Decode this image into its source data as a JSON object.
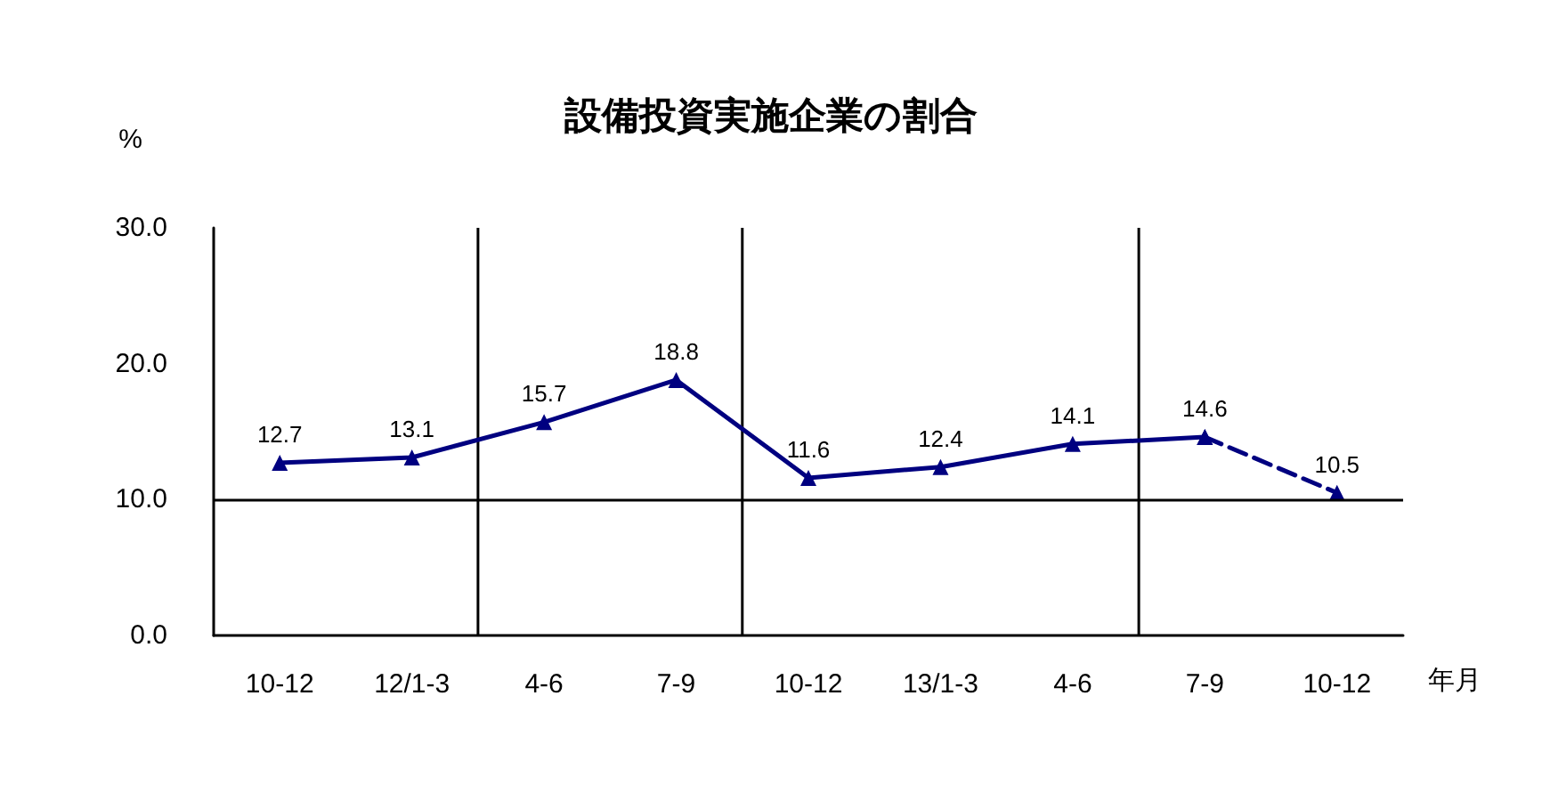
{
  "chart_data": {
    "type": "line",
    "title": "設備投資実施企業の割合",
    "xlabel": "年月",
    "ylabel": "%",
    "categories": [
      "10-12",
      "12/1-3",
      "4-6",
      "7-9",
      "10-12",
      "13/1-3",
      "4-6",
      "7-9",
      "10-12"
    ],
    "series": [
      {
        "color": "#000080",
        "line_style": "solid",
        "values": [
          12.7,
          13.1,
          15.7,
          18.8,
          11.6,
          12.4,
          14.1,
          14.6,
          null
        ],
        "value_labels": [
          "12.7",
          "13.1",
          "15.7",
          "18.8",
          "11.6",
          "12.4",
          "14.1",
          "14.6",
          null
        ]
      },
      {
        "color": "#000080",
        "line_style": "dashed",
        "values": [
          null,
          null,
          null,
          null,
          null,
          null,
          null,
          14.6,
          10.5
        ],
        "value_labels": [
          null,
          null,
          null,
          null,
          null,
          null,
          null,
          null,
          "10.5"
        ]
      }
    ],
    "ylim": [
      0,
      30
    ],
    "yticks": [
      {
        "value": 0,
        "label": "0.0"
      },
      {
        "value": 10,
        "label": "10.0"
      },
      {
        "value": 20,
        "label": "20.0"
      },
      {
        "value": 30,
        "label": "30.0"
      }
    ],
    "grid": false,
    "marker": "triangle",
    "ref_lines": [
      {
        "axis": "y",
        "value": 10,
        "color": "#000000"
      }
    ]
  }
}
